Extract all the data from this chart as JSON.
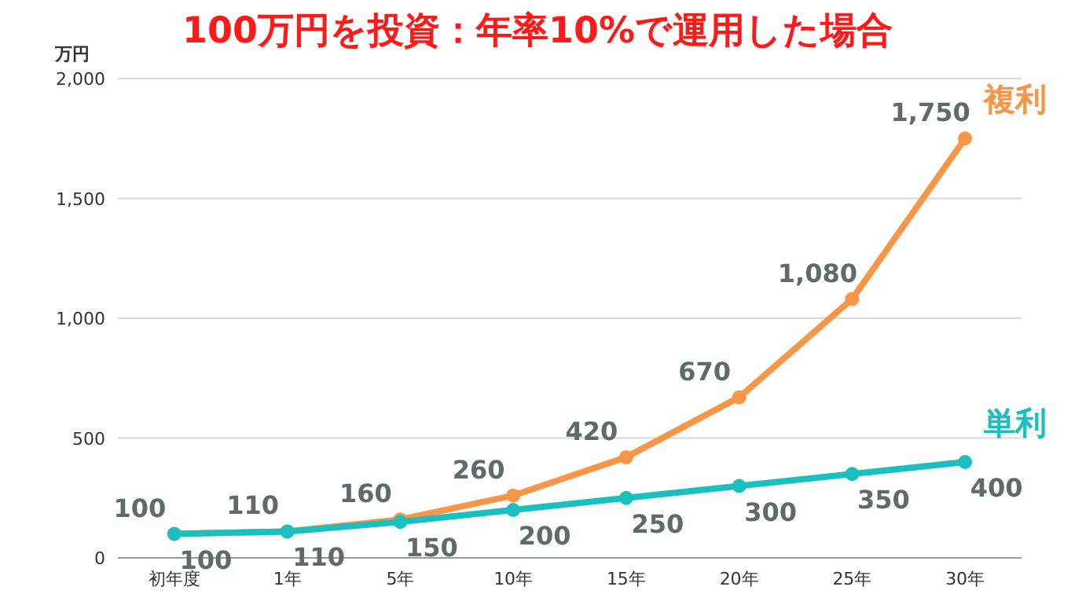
{
  "chart_data": {
    "type": "line",
    "title": "100万円を投資：年率10%で運用した場合",
    "ylabel": "万円",
    "categories": [
      "初年度",
      "1年",
      "5年",
      "10年",
      "15年",
      "20年",
      "25年",
      "30年"
    ],
    "series": [
      {
        "name": "複利",
        "color": "#f79646",
        "values": [
          100,
          110,
          160,
          260,
          420,
          670,
          1080,
          1750
        ],
        "value_labels": [
          "100",
          "110",
          "160",
          "260",
          "420",
          "670",
          "1,080",
          "1,750"
        ]
      },
      {
        "name": "単利",
        "color": "#1cbfbf",
        "values": [
          100,
          110,
          150,
          200,
          250,
          300,
          350,
          400
        ],
        "value_labels": [
          "100",
          "110",
          "150",
          "200",
          "250",
          "300",
          "350",
          "400"
        ]
      }
    ],
    "ylim": [
      0,
      2000
    ],
    "yticks": [
      0,
      500,
      {
        "value": 1000,
        "label": "1,000"
      },
      {
        "value": 1500,
        "label": "1,500"
      },
      {
        "value": 2000,
        "label": "2,000"
      }
    ],
    "grid": "y",
    "marker": "circle",
    "line_style": "solid"
  }
}
